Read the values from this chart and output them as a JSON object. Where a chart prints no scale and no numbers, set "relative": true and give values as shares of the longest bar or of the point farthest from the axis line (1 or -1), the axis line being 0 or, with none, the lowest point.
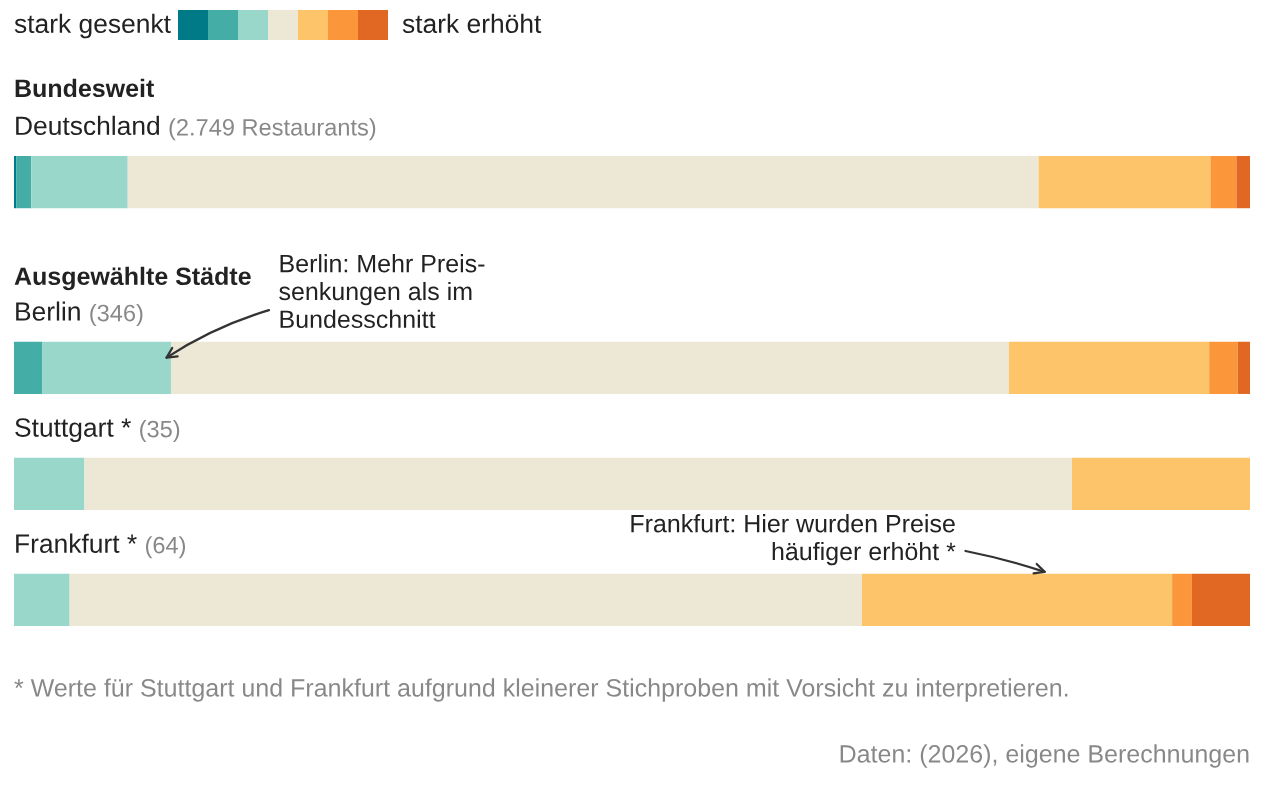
{
  "chart_data": {
    "type": "bar",
    "orientation": "horizontal",
    "stacked": true,
    "relative": true,
    "categories": [
      "Deutschland (2.749 Restaurants)",
      "Berlin (346)",
      "Stuttgart * (35)",
      "Frankfurt * (64)"
    ],
    "series": [
      {
        "color": "#007a87",
        "values": [
          0.002,
          0,
          0,
          0
        ]
      },
      {
        "color": "#44ada6",
        "values": [
          0.012,
          0.023,
          0,
          0
        ]
      },
      {
        "color": "#98d7ca",
        "values": [
          0.078,
          0.104,
          0.057,
          0.045
        ]
      },
      {
        "color": "#ede7d5",
        "values": [
          0.737,
          0.678,
          0.799,
          0.641
        ]
      },
      {
        "color": "#fdc46a",
        "values": [
          0.139,
          0.162,
          0.144,
          0.251
        ]
      },
      {
        "color": "#fb963a",
        "values": [
          0.021,
          0.023,
          0,
          0.016
        ]
      },
      {
        "color": "#e06822",
        "values": [
          0.011,
          0.01,
          0,
          0.047
        ]
      }
    ],
    "annotations": [
      "stark gesenkt",
      "stark erhöht",
      "Bundesweit",
      "Ausgewählte Städte",
      "Berlin: Mehr Preis-\nsenkungen als im\nBundesschnitt",
      "Frankfurt: Hier wurden Preise\nhäufiger erhöht *",
      "* Werte für Stuttgart und Frankfurt aufgrund kleinerer Stichproben mit Vorsicht zu interpretieren.",
      "Daten: (2026), eigene Berechnungen"
    ]
  }
}
